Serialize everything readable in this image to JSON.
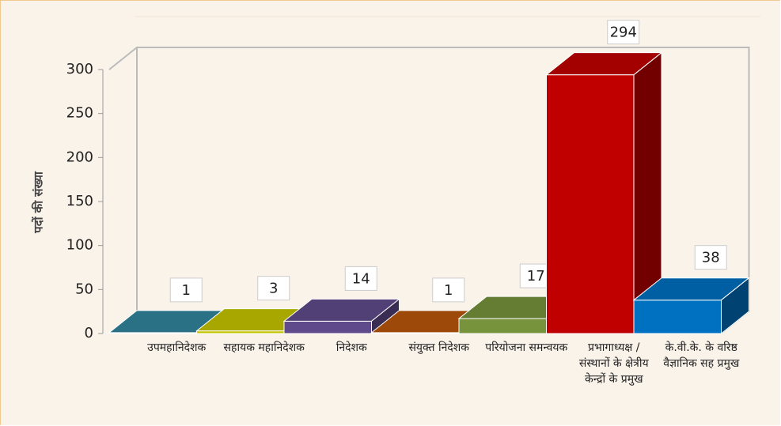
{
  "chart_data": {
    "type": "bar3d",
    "y_label": "पदों की संख्या",
    "categories": [
      "उपमहानिदेशक",
      "सहायक महानिदेशक",
      "निदेशक",
      "संयुक्त निदेशक",
      "परियोजना समन्वयक",
      "प्रभागाध्यक्ष / संस्थानों के क्षेत्रीय केन्द्रों के प्रमुख",
      "के.वी.के. के वरिष्ठ वैज्ञानिक सह प्रमुख"
    ],
    "values": [
      1,
      3,
      14,
      1,
      17,
      294,
      38
    ],
    "colors": [
      "#31859c",
      "#c4c400",
      "#5f4b8b",
      "#b8560c",
      "#77933c",
      "#c00000",
      "#0070c0"
    ],
    "ylim": [
      0,
      300
    ],
    "yticks": [
      0,
      50,
      100,
      150,
      200,
      250,
      300
    ]
  }
}
